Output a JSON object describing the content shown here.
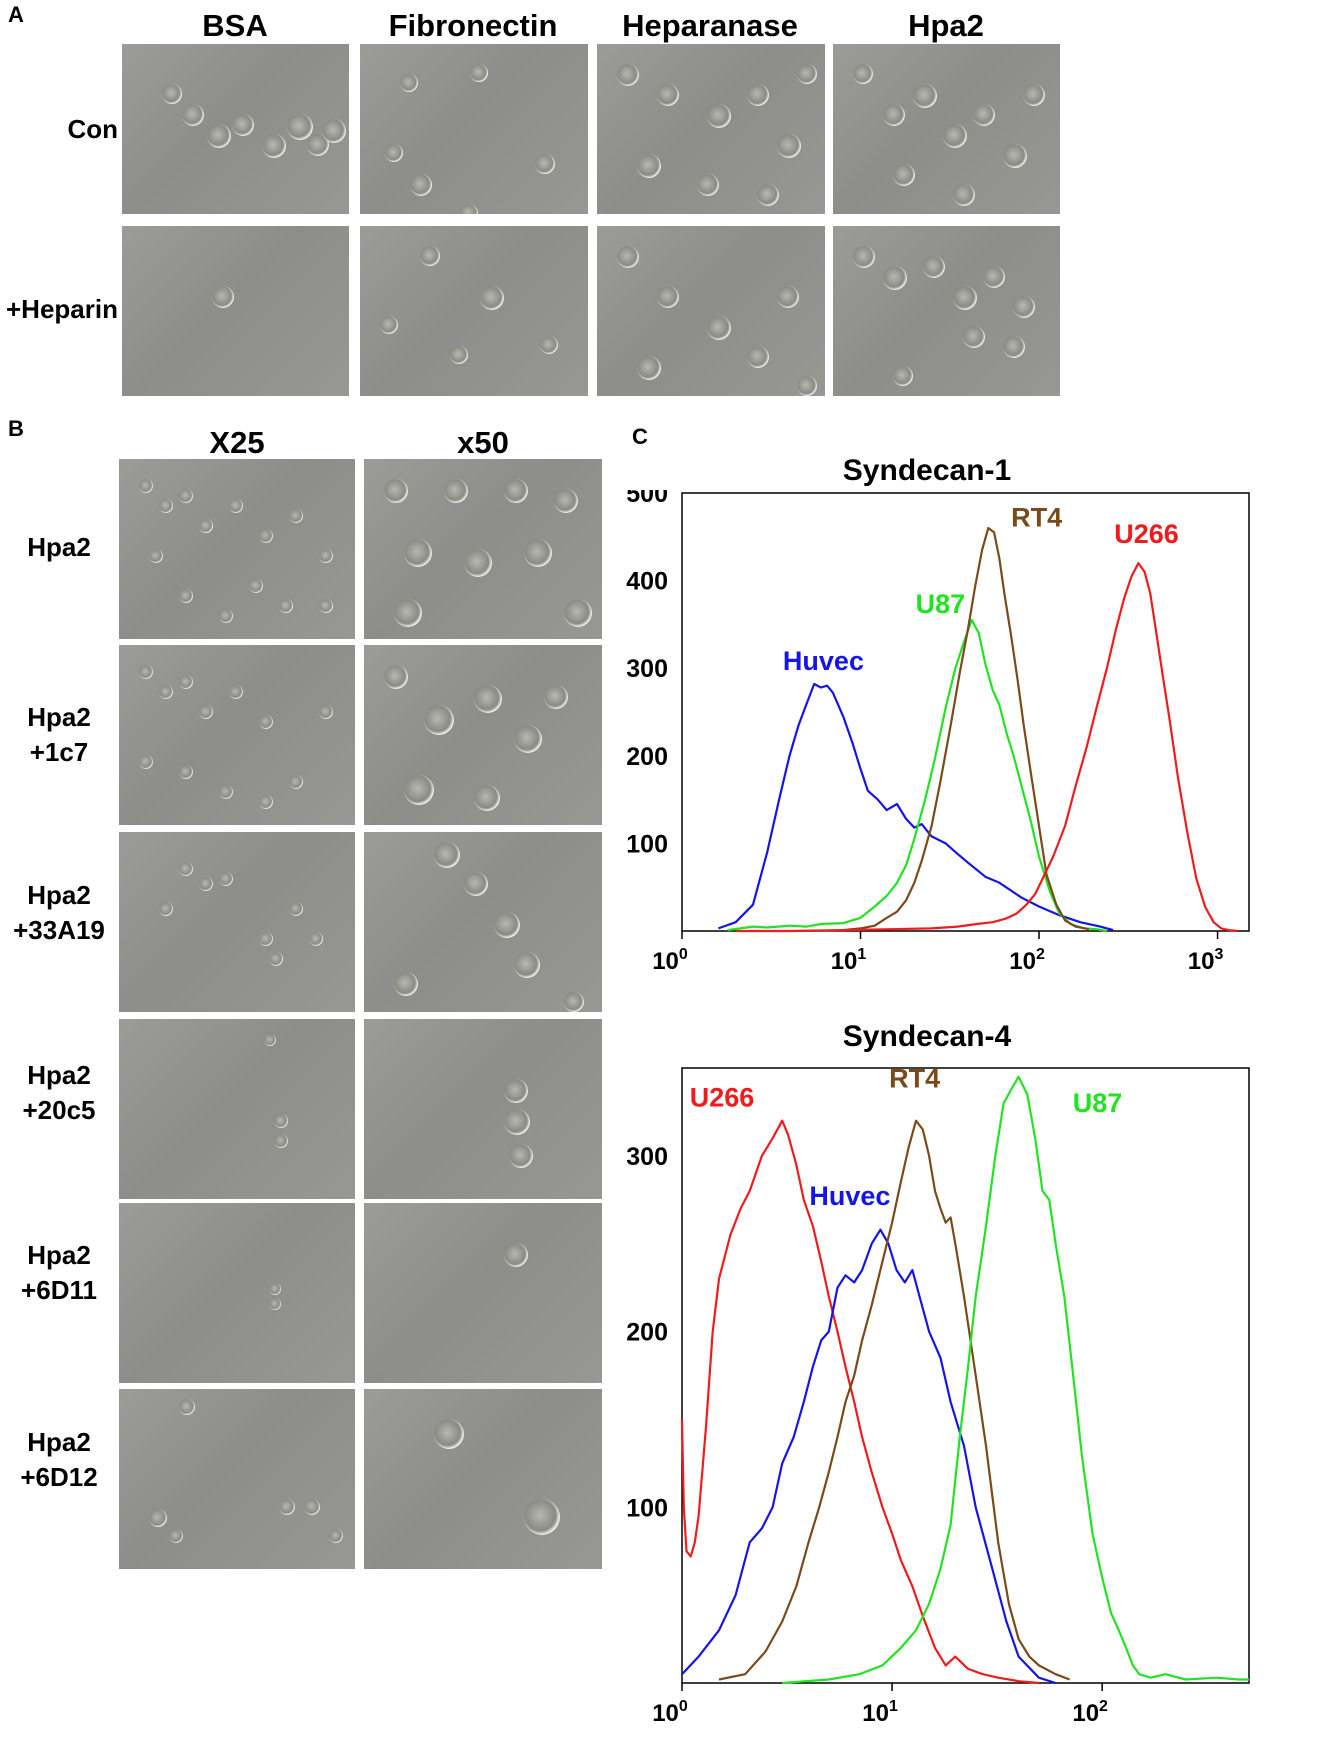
{
  "panels": {
    "A": {
      "letter": "A",
      "columns": [
        "BSA",
        "Fibronectin",
        "Heparanase",
        "Hpa2"
      ],
      "rows": [
        "Con",
        "+Heparin"
      ]
    },
    "B": {
      "letter": "B",
      "columns": [
        "X25",
        "x50"
      ],
      "rows": [
        {
          "line1": "Hpa2",
          "line2": ""
        },
        {
          "line1": "Hpa2",
          "line2": "+1c7"
        },
        {
          "line1": "Hpa2",
          "line2": "+33A19"
        },
        {
          "line1": "Hpa2",
          "line2": "+20c5"
        },
        {
          "line1": "Hpa2",
          "line2": "+6D11"
        },
        {
          "line1": "Hpa2",
          "line2": "+6D12"
        }
      ]
    },
    "C": {
      "letter": "C"
    }
  },
  "colors": {
    "Huvec": "#1515e6",
    "U87": "#22e322",
    "RT4": "#7a4a1a",
    "U266": "#ee1c1c"
  },
  "chart_data": [
    {
      "type": "line",
      "title": "Syndecan-1",
      "x_scale": "log",
      "xlim": [
        1,
        1500
      ],
      "ylim": [
        0,
        500
      ],
      "y_ticks": [
        100,
        200,
        300,
        400,
        500
      ],
      "x_ticks": [
        {
          "base": "10",
          "exp": "0"
        },
        {
          "base": "10",
          "exp": "1"
        },
        {
          "base": "10",
          "exp": "2"
        },
        {
          "base": "10",
          "exp": "3"
        }
      ],
      "x_tick_values": [
        1,
        10,
        100,
        1000
      ],
      "series": [
        {
          "name": "Huvec",
          "x": [
            1.6,
            2,
            2.5,
            3,
            3.5,
            4,
            4.5,
            5,
            5.5,
            6,
            6.5,
            7,
            8,
            9,
            10,
            11,
            12.5,
            14,
            16,
            18,
            20,
            22,
            25,
            30,
            35,
            40,
            50,
            60,
            80,
            100,
            130,
            170,
            220,
            260
          ],
          "y": [
            3,
            10,
            30,
            90,
            150,
            200,
            235,
            260,
            282,
            278,
            280,
            272,
            245,
            215,
            185,
            160,
            150,
            138,
            145,
            128,
            118,
            122,
            108,
            100,
            88,
            78,
            62,
            55,
            38,
            28,
            18,
            10,
            5,
            1
          ]
        },
        {
          "name": "U87",
          "x": [
            1.8,
            2.5,
            3,
            4,
            5,
            6,
            8,
            10,
            12,
            14,
            16,
            18,
            20,
            23,
            26,
            30,
            34,
            38,
            42,
            46,
            50,
            55,
            60,
            66,
            72,
            80,
            90,
            100,
            115,
            130,
            150,
            180,
            210,
            240
          ],
          "y": [
            1,
            5,
            4,
            6,
            5,
            8,
            9,
            15,
            28,
            40,
            55,
            75,
            105,
            150,
            195,
            255,
            300,
            330,
            355,
            340,
            305,
            275,
            258,
            225,
            200,
            165,
            125,
            85,
            45,
            20,
            8,
            3,
            2,
            0
          ]
        },
        {
          "name": "RT4",
          "x": [
            8,
            10,
            12,
            14,
            16,
            18,
            20,
            22,
            25,
            28,
            32,
            36,
            40,
            44,
            48,
            52,
            56,
            60,
            64,
            70,
            76,
            82,
            90,
            100,
            110,
            125,
            140,
            160,
            190
          ],
          "y": [
            1,
            3,
            6,
            15,
            22,
            35,
            55,
            80,
            120,
            170,
            235,
            295,
            345,
            395,
            435,
            460,
            455,
            425,
            385,
            335,
            285,
            235,
            180,
            120,
            65,
            30,
            12,
            5,
            2
          ]
        },
        {
          "name": "U266",
          "x": [
            2,
            4,
            8,
            15,
            25,
            35,
            45,
            55,
            65,
            75,
            85,
            95,
            105,
            120,
            140,
            160,
            185,
            210,
            240,
            270,
            300,
            330,
            360,
            390,
            420,
            450,
            490,
            540,
            600,
            680,
            760,
            850,
            950,
            1050,
            1150,
            1300
          ],
          "y": [
            0,
            0,
            1,
            2,
            3,
            5,
            8,
            10,
            14,
            20,
            30,
            42,
            60,
            85,
            120,
            165,
            210,
            255,
            300,
            345,
            380,
            405,
            420,
            410,
            385,
            345,
            295,
            240,
            175,
            110,
            60,
            28,
            10,
            3,
            1,
            0
          ]
        }
      ],
      "annotations": [
        {
          "text": "Huvec",
          "series": "Huvec",
          "x": 6.2,
          "y": 298
        },
        {
          "text": "U87",
          "series": "U87",
          "x": 28,
          "y": 363
        },
        {
          "text": "RT4",
          "series": "RT4",
          "x": 97,
          "y": 462
        },
        {
          "text": "U266",
          "series": "U266",
          "x": 400,
          "y": 443
        }
      ]
    },
    {
      "type": "line",
      "title": "Syndecan-4",
      "x_scale": "log",
      "xlim": [
        1,
        500
      ],
      "ylim": [
        0,
        350
      ],
      "y_ticks": [
        100,
        200,
        300
      ],
      "x_ticks": [
        {
          "base": "10",
          "exp": "0"
        },
        {
          "base": "10",
          "exp": "1"
        },
        {
          "base": "10",
          "exp": "2"
        }
      ],
      "x_tick_values": [
        1,
        10,
        100
      ],
      "series": [
        {
          "name": "U266",
          "x": [
            1,
            1.02,
            1.05,
            1.1,
            1.15,
            1.2,
            1.3,
            1.4,
            1.5,
            1.7,
            1.9,
            2.1,
            2.4,
            2.7,
            3,
            3.2,
            3.5,
            3.8,
            4.2,
            4.6,
            5,
            5.5,
            6,
            6.6,
            7.2,
            8,
            9,
            10,
            11,
            12.5,
            14,
            16,
            18,
            20,
            23,
            27,
            32,
            40,
            50
          ],
          "y": [
            150,
            100,
            75,
            72,
            80,
            95,
            145,
            200,
            230,
            255,
            270,
            280,
            300,
            310,
            320,
            312,
            295,
            275,
            260,
            240,
            220,
            200,
            180,
            160,
            140,
            120,
            100,
            85,
            70,
            55,
            38,
            20,
            10,
            15,
            8,
            5,
            3,
            1,
            0
          ]
        },
        {
          "name": "Huvec",
          "x": [
            1,
            1.2,
            1.5,
            1.8,
            2.1,
            2.4,
            2.7,
            3,
            3.4,
            3.8,
            4.2,
            4.6,
            5,
            5.5,
            6,
            6.6,
            7.2,
            8,
            8.8,
            9.6,
            10.5,
            11.5,
            12.5,
            13.5,
            15,
            17,
            19,
            22,
            25,
            30,
            35,
            40,
            50,
            60
          ],
          "y": [
            5,
            15,
            30,
            50,
            80,
            88,
            100,
            125,
            140,
            160,
            180,
            195,
            200,
            225,
            232,
            228,
            235,
            250,
            258,
            250,
            235,
            228,
            235,
            220,
            200,
            185,
            160,
            135,
            100,
            65,
            35,
            15,
            3,
            0
          ]
        },
        {
          "name": "RT4",
          "x": [
            1.5,
            2,
            2.5,
            3,
            3.5,
            4,
            4.5,
            5,
            5.5,
            6,
            6.6,
            7.2,
            8,
            9,
            10,
            11,
            12,
            13,
            14,
            15,
            16,
            17,
            18,
            19,
            20,
            22,
            25,
            28,
            32,
            36,
            40,
            45,
            50,
            60,
            70
          ],
          "y": [
            2,
            5,
            18,
            35,
            55,
            80,
            100,
            120,
            140,
            160,
            175,
            195,
            215,
            240,
            262,
            285,
            305,
            320,
            315,
            300,
            280,
            270,
            262,
            265,
            250,
            220,
            175,
            135,
            80,
            45,
            25,
            15,
            10,
            5,
            2
          ]
        },
        {
          "name": "U87",
          "x": [
            3,
            5,
            7,
            9,
            11,
            13,
            15,
            17,
            19,
            21,
            23,
            25,
            28,
            31,
            34,
            37,
            40,
            44,
            48,
            52,
            56,
            60,
            66,
            72,
            80,
            90,
            100,
            110,
            120,
            130,
            140,
            150,
            170,
            200,
            250,
            350,
            450,
            500
          ],
          "y": [
            0,
            2,
            5,
            10,
            20,
            30,
            45,
            65,
            90,
            140,
            180,
            220,
            260,
            300,
            330,
            338,
            345,
            335,
            310,
            280,
            275,
            250,
            220,
            180,
            130,
            85,
            60,
            40,
            30,
            20,
            10,
            5,
            3,
            5,
            2,
            3,
            2,
            2
          ]
        }
      ],
      "annotations": [
        {
          "text": "U266",
          "series": "U266",
          "x": 1.55,
          "y": 328
        },
        {
          "text": "Huvec",
          "series": "Huvec",
          "x": 6.3,
          "y": 272
        },
        {
          "text": "RT4",
          "series": "RT4",
          "x": 12.8,
          "y": 339
        },
        {
          "text": "U87",
          "series": "U87",
          "x": 95,
          "y": 325
        }
      ]
    }
  ]
}
